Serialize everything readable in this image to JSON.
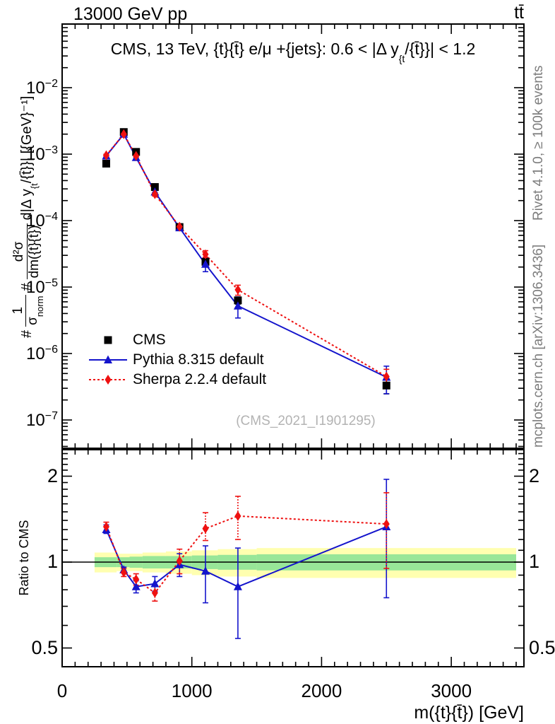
{
  "header": {
    "left": "13000 GeV pp",
    "right": "tt̄"
  },
  "title": {
    "pre": "CMS, 13 TeV, {t}{t̄} e/μ +{jets}: 0.6 < |Δ y",
    "sub": "{t",
    "post": "/{t̄}}| < 1.2"
  },
  "ylabel": {
    "h1": "#",
    "f1n": "1",
    "f1d_pre": "σ",
    "f1d_sub": "norm",
    "h2": "#",
    "f2n": "d²σ",
    "f2d": "dm({t}{t̄})",
    "t_pre": "d|Δ y",
    "t_sub": "{t",
    "t_post": "/{t̄}}|  [{GeV}⁻¹]"
  },
  "side": {
    "rivet": "Rivet 4.1.0, ≥ 100k events",
    "mcplots": "mcplots.cern.ch [arXiv:1306.3436]"
  },
  "watermark": "(CMS_2021_I1901295)",
  "ratio_label": "Ratio to CMS",
  "xaxis": {
    "title": "m({t}{t̄}) [GeV]"
  },
  "legend": {
    "items": [
      {
        "label": "CMS",
        "marker": "square",
        "line": "none",
        "color": "#000000"
      },
      {
        "label": "Pythia 8.315 default",
        "marker": "triangle",
        "line": "solid",
        "color": "#1414cc"
      },
      {
        "label": "Sherpa 2.2.4 default",
        "marker": "diamond",
        "line": "dotted",
        "color": "#ee1111"
      }
    ]
  },
  "colors": {
    "cms": "#000000",
    "pythia": "#1414cc",
    "sherpa": "#ee1111",
    "band_yellow": "#ffffb0",
    "band_green": "#98e698",
    "gray_text": "#7d7d7d",
    "watermark": "#b3b3b3"
  },
  "axes": {
    "x_ticks": [
      {
        "v": 0,
        "label": "0"
      },
      {
        "v": 1000,
        "label": "1000"
      },
      {
        "v": 2000,
        "label": "2000"
      },
      {
        "v": 3000,
        "label": "3000"
      }
    ],
    "x_minor_step": 100,
    "x_max": 3500,
    "y_ticks": [
      {
        "v": 0.01,
        "e": "−2"
      },
      {
        "v": 0.001,
        "e": "−3"
      },
      {
        "v": 0.0001,
        "e": "−4"
      },
      {
        "v": 1e-05,
        "e": "−5"
      },
      {
        "v": 1e-06,
        "e": "−6"
      },
      {
        "v": 1e-07,
        "e": "−7"
      }
    ],
    "ratio_ticks": [
      {
        "v": 2,
        "label": "2"
      },
      {
        "v": 1,
        "label": "1"
      },
      {
        "v": 0.5,
        "label": "0.5"
      }
    ],
    "ratio_minor": [
      0.6,
      0.7,
      0.8,
      0.9,
      1.1,
      1.2,
      1.3,
      1.4,
      1.5,
      1.6,
      1.7,
      1.8,
      1.9,
      2.1,
      2.2,
      2.3,
      2.4
    ]
  },
  "chart_data": {
    "type": "line",
    "title": "CMS, 13 TeV, tt e/mu +jets: 0.6 < |dy(t/tbar)| < 1.2",
    "xlabel": "m(ttbar) [GeV]",
    "ylabel": "1/sigma_norm d2sigma/dm(tt)d|dy| [GeV^-1]",
    "ratio_ylabel": "Ratio to CMS",
    "xlim": [
      0,
      3560
    ],
    "ylim_main": [
      4e-08,
      0.09
    ],
    "ylim_ratio": [
      0.43,
      2.47
    ],
    "x": [
      340,
      475,
      570,
      715,
      905,
      1105,
      1355,
      2500
    ],
    "bin_edges": [
      250,
      420,
      520,
      620,
      800,
      1000,
      1200,
      1500,
      3500
    ],
    "series": [
      {
        "name": "CMS",
        "values": [
          0.00072,
          0.00215,
          0.00108,
          0.00032,
          8e-05,
          2.4e-05,
          6.3e-06,
          3.3e-07
        ],
        "err_frac": [
          0.05,
          0.03,
          0.03,
          0.04,
          0.05,
          0.08,
          0.12,
          0.25
        ]
      },
      {
        "name": "Pythia 8.315 default",
        "values": [
          0.00094,
          0.002,
          0.00089,
          0.00027,
          7.8e-05,
          2.2e-05,
          5.2e-06,
          4.4e-07
        ],
        "ratio": [
          1.3,
          0.94,
          0.82,
          0.84,
          0.98,
          0.93,
          0.82,
          1.33
        ],
        "ratio_lo": [
          1.26,
          0.92,
          0.78,
          0.79,
          0.89,
          0.72,
          0.54,
          0.75
        ],
        "ratio_hi": [
          1.35,
          0.96,
          0.86,
          0.89,
          1.07,
          1.14,
          1.12,
          1.95
        ]
      },
      {
        "name": "Sherpa 2.2.4 default",
        "values": [
          0.00096,
          0.002,
          0.00094,
          0.00025,
          8.1e-05,
          3.1e-05,
          9.1e-06,
          4.5e-07
        ],
        "ratio": [
          1.33,
          0.92,
          0.87,
          0.78,
          1.01,
          1.31,
          1.45,
          1.36
        ],
        "ratio_lo": [
          1.28,
          0.89,
          0.83,
          0.73,
          0.91,
          1.19,
          1.2,
          0.95
        ],
        "ratio_hi": [
          1.38,
          0.95,
          0.91,
          0.83,
          1.11,
          1.49,
          1.7,
          1.75
        ]
      }
    ],
    "bands": {
      "yellow_halfwidth": [
        0.08,
        0.07,
        0.07,
        0.08,
        0.09,
        0.1,
        0.11,
        0.12
      ],
      "green_halfwidth": [
        0.04,
        0.04,
        0.045,
        0.05,
        0.05,
        0.055,
        0.06,
        0.065
      ],
      "legend_note": "CMS uncertainty bands around ratio = 1"
    },
    "legend_position": "upper-left-inside",
    "grid": false,
    "yscale": "log",
    "ratio_yscale": "log"
  }
}
